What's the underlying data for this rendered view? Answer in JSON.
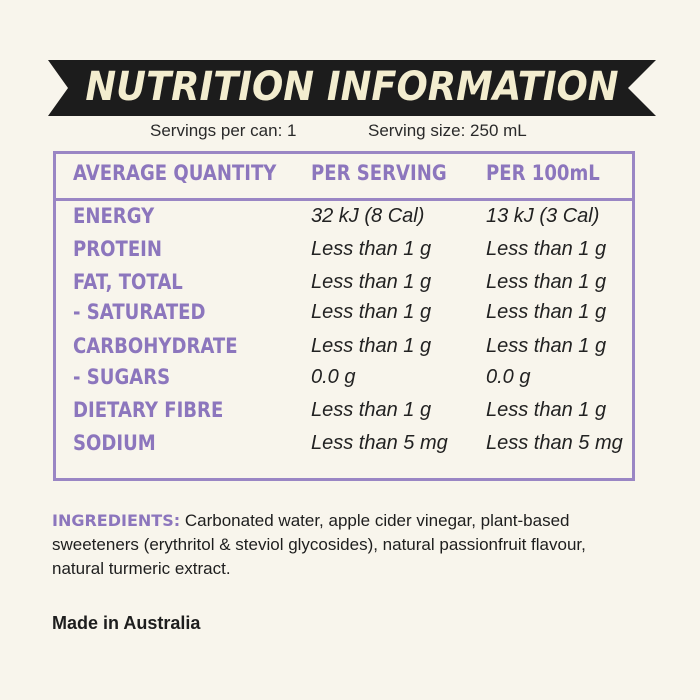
{
  "title": "NUTRITION INFORMATION",
  "servings": {
    "per_can": "Servings per can: 1",
    "size": "Serving size: 250 mL"
  },
  "table": {
    "headers": [
      "AVERAGE QUANTITY",
      "PER SERVING",
      "PER 100mL"
    ],
    "rows": [
      {
        "name": "ENERGY",
        "per_serving": "32 kJ (8 Cal)",
        "per_100": "13 kJ (3 Cal)"
      },
      {
        "name": "PROTEIN",
        "per_serving": "Less than 1 g",
        "per_100": "Less than 1 g"
      },
      {
        "name": "FAT, TOTAL",
        "per_serving": "Less than 1 g",
        "per_100": "Less than 1 g"
      },
      {
        "name": "- SATURATED",
        "per_serving": "Less than 1 g",
        "per_100": "Less than 1 g"
      },
      {
        "name": "CARBOHYDRATE",
        "per_serving": "Less than 1 g",
        "per_100": "Less than 1 g"
      },
      {
        "name": "- SUGARS",
        "per_serving": "0.0 g",
        "per_100": "0.0 g"
      },
      {
        "name": "DIETARY FIBRE",
        "per_serving": "Less than 1 g",
        "per_100": "Less than 1 g"
      },
      {
        "name": "SODIUM",
        "per_serving": "Less than 5 mg",
        "per_100": "Less than 5 mg"
      }
    ]
  },
  "ingredients": {
    "label": "INGREDIENTS:",
    "text": "Carbonated water, apple cider vinegar, plant-based sweeteners (erythritol & steviol glycosides), natural passionfruit flavour, natural turmeric extract."
  },
  "origin": "Made in Australia",
  "colors": {
    "accent": "#8c76bd",
    "banner": "#1c1c1c",
    "banner_text": "#f3edcf",
    "background": "#f8f5ec"
  }
}
